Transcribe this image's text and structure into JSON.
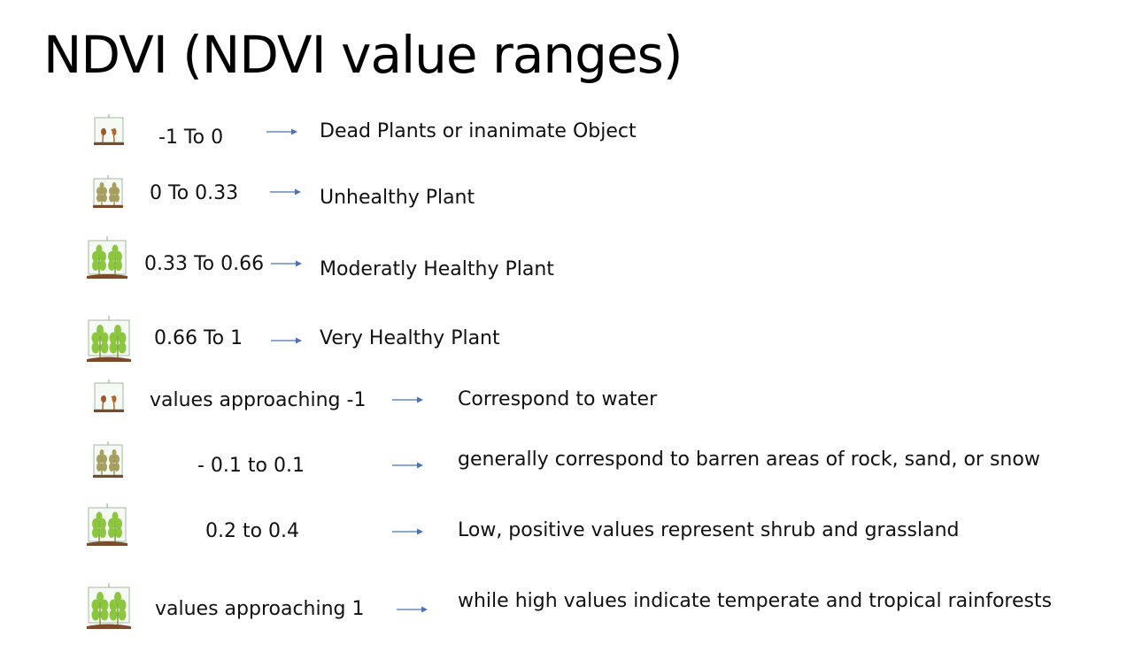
{
  "title": "NDVI (NDVI value ranges)",
  "colors": {
    "arrow": "#4a72b8",
    "soil": "#7a4a2a",
    "dead_leaf": "#9b5a2a",
    "unhealthy_leaf": "#a8a060",
    "healthy_leaf": "#8cc63f",
    "frame": "#8fa88a"
  },
  "rows": [
    {
      "icon": "dead-plant-icon",
      "range": "-1 To 0",
      "description": "Dead Plants or inanimate Object"
    },
    {
      "icon": "unhealthy-plant-icon",
      "range": "0 To 0.33",
      "description": "Unhealthy Plant"
    },
    {
      "icon": "healthy-plant-icon",
      "range": "0.33 To 0.66",
      "description": "Moderatly Healthy Plant"
    },
    {
      "icon": "healthy-plant-icon",
      "range": "0.66 To 1",
      "description": "Very Healthy Plant"
    },
    {
      "icon": "dead-plant-icon",
      "range": "values approaching -1",
      "description": "Correspond to water"
    },
    {
      "icon": "unhealthy-plant-icon",
      "range": "- 0.1 to 0.1",
      "description": "generally correspond to barren areas of rock, sand, or snow"
    },
    {
      "icon": "healthy-plant-icon",
      "range": "0.2 to 0.4",
      "description": "Low, positive values represent shrub and grassland"
    },
    {
      "icon": "healthy-plant-icon",
      "range": "values approaching 1",
      "description": "while high values indicate temperate and tropical rainforests"
    }
  ]
}
